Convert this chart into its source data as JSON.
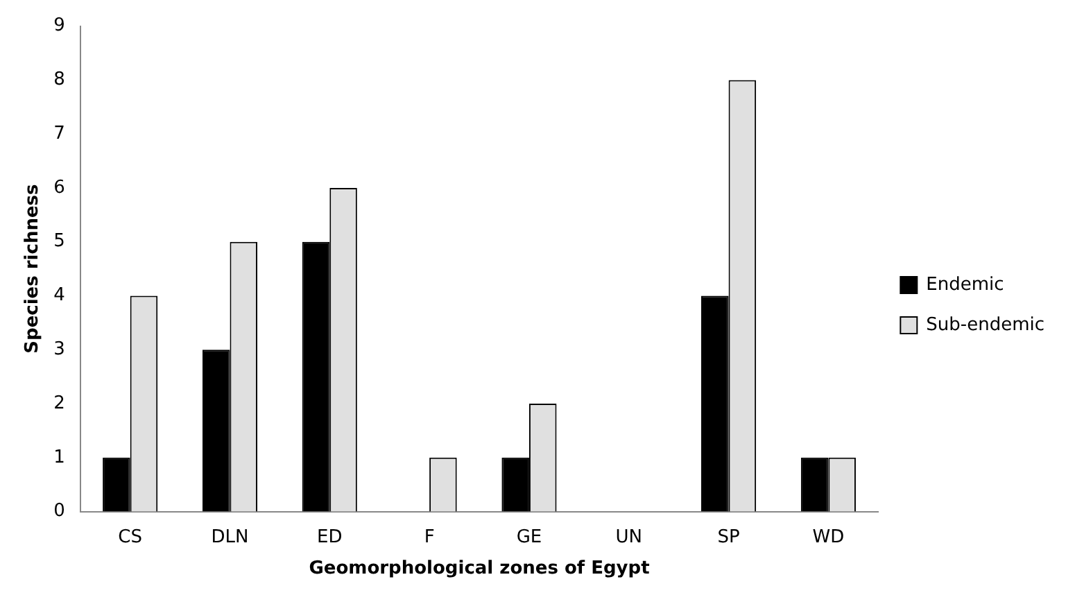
{
  "chart_data": {
    "type": "bar",
    "xlabel": "Geomorphological zones of Egypt",
    "ylabel": "Species richness",
    "categories": [
      "CS",
      "DLN",
      "ED",
      "F",
      "GE",
      "UN",
      "SP",
      "WD"
    ],
    "series": [
      {
        "name": "Endemic",
        "color": "#000000",
        "values": [
          1,
          3,
          5,
          0,
          1,
          0,
          4,
          1
        ]
      },
      {
        "name": "Sub-endemic",
        "color": "#e0e0e0",
        "values": [
          4,
          5,
          6,
          1,
          2,
          0,
          8,
          1
        ]
      }
    ],
    "ylim": [
      0,
      9
    ],
    "yticks": [
      0,
      1,
      2,
      3,
      4,
      5,
      6,
      7,
      8,
      9
    ],
    "grid": false,
    "legend": "right"
  }
}
